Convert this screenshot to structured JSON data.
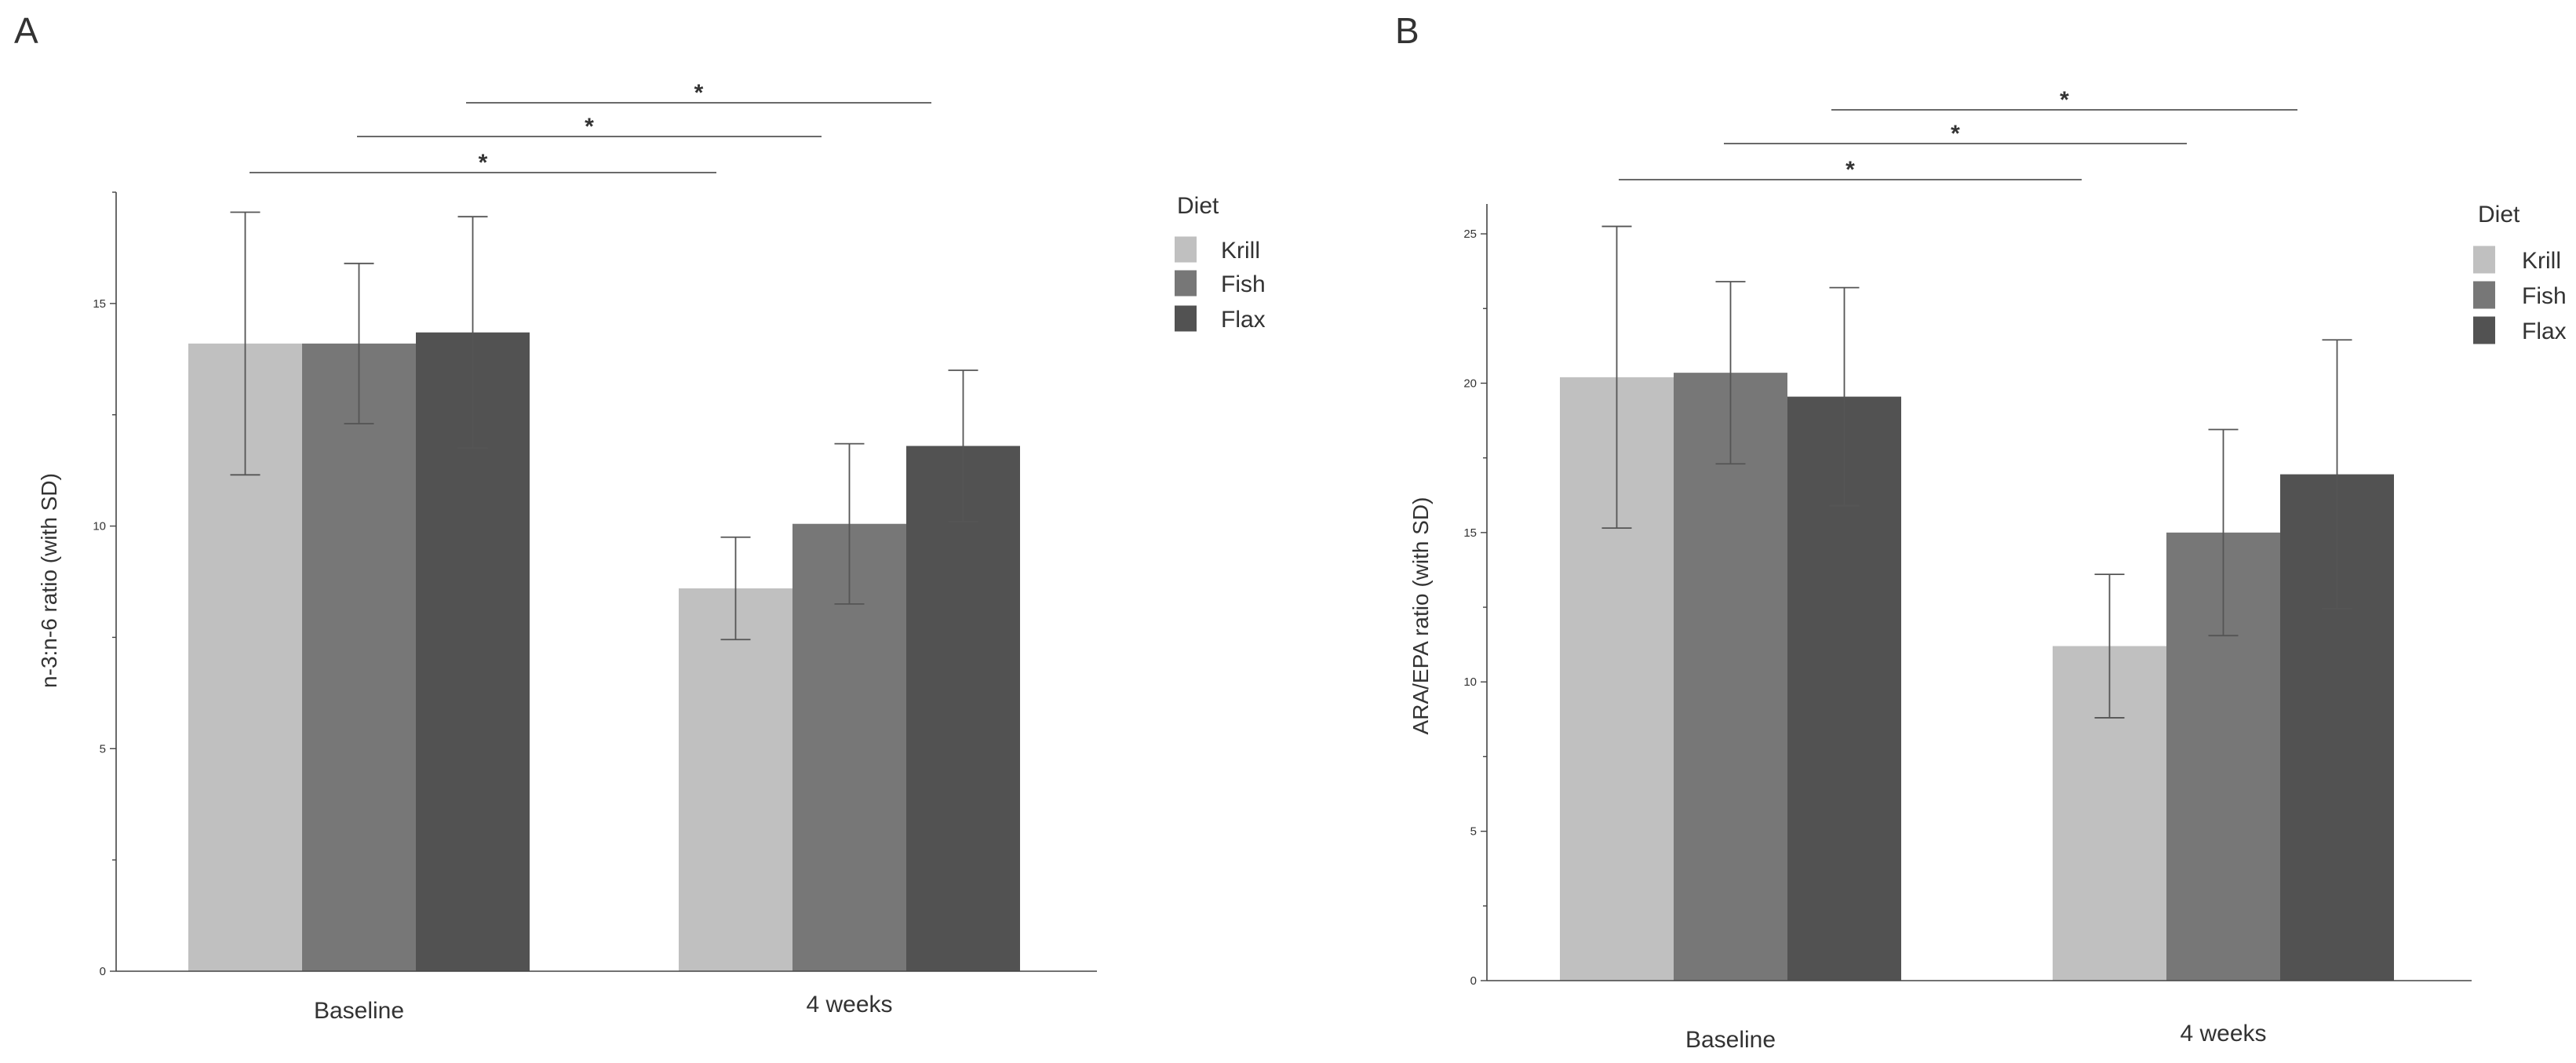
{
  "chart_data": [
    {
      "type": "bar",
      "panel": "A",
      "categories": [
        "Baseline",
        "4 weeks"
      ],
      "series": [
        {
          "name": "Krill",
          "values": [
            14.1,
            8.6
          ],
          "sd": [
            2.95,
            1.15
          ],
          "color": "#c0c0c0"
        },
        {
          "name": "Fish",
          "values": [
            14.1,
            10.05
          ],
          "sd": [
            1.8,
            1.8
          ],
          "color": "#777777"
        },
        {
          "name": "Flax",
          "values": [
            14.35,
            11.8
          ],
          "sd": [
            2.6,
            1.7
          ],
          "color": "#525252"
        }
      ],
      "title": "",
      "xlabel": "",
      "ylabel": "n-3:n-6 ratio (with SD)",
      "ylim": [
        0,
        17.5
      ],
      "yticks": [
        "0",
        "5",
        "10",
        "15"
      ],
      "legend": {
        "title": "Diet",
        "position": "right"
      },
      "grid": false,
      "significance": [
        {
          "from": "Baseline/Krill",
          "to": "4 weeks/Krill",
          "label": "*"
        },
        {
          "from": "Baseline/Fish",
          "to": "4 weeks/Fish",
          "label": "*"
        },
        {
          "from": "Baseline/Flax",
          "to": "4 weeks/Flax",
          "label": "*"
        }
      ]
    },
    {
      "type": "bar",
      "panel": "B",
      "categories": [
        "Baseline",
        "4 weeks"
      ],
      "series": [
        {
          "name": "Krill",
          "values": [
            20.2,
            11.2
          ],
          "sd": [
            5.05,
            2.4
          ],
          "color": "#c0c0c0"
        },
        {
          "name": "Fish",
          "values": [
            20.35,
            15.0
          ],
          "sd": [
            3.05,
            3.45
          ],
          "color": "#777777"
        },
        {
          "name": "Flax",
          "values": [
            19.55,
            16.95
          ],
          "sd": [
            3.65,
            4.5
          ],
          "color": "#525252"
        }
      ],
      "title": "",
      "xlabel": "",
      "ylabel": "ARA/EPA ratio (with SD)",
      "ylim": [
        0,
        26
      ],
      "yticks": [
        "0",
        "5",
        "10",
        "15",
        "20",
        "25"
      ],
      "legend": {
        "title": "Diet",
        "position": "right"
      },
      "grid": false,
      "significance": [
        {
          "from": "Baseline/Krill",
          "to": "4 weeks/Krill",
          "label": "*"
        },
        {
          "from": "Baseline/Fish",
          "to": "4 weeks/Fish",
          "label": "*"
        },
        {
          "from": "Baseline/Flax",
          "to": "4 weeks/Flax",
          "label": "*"
        }
      ]
    }
  ]
}
